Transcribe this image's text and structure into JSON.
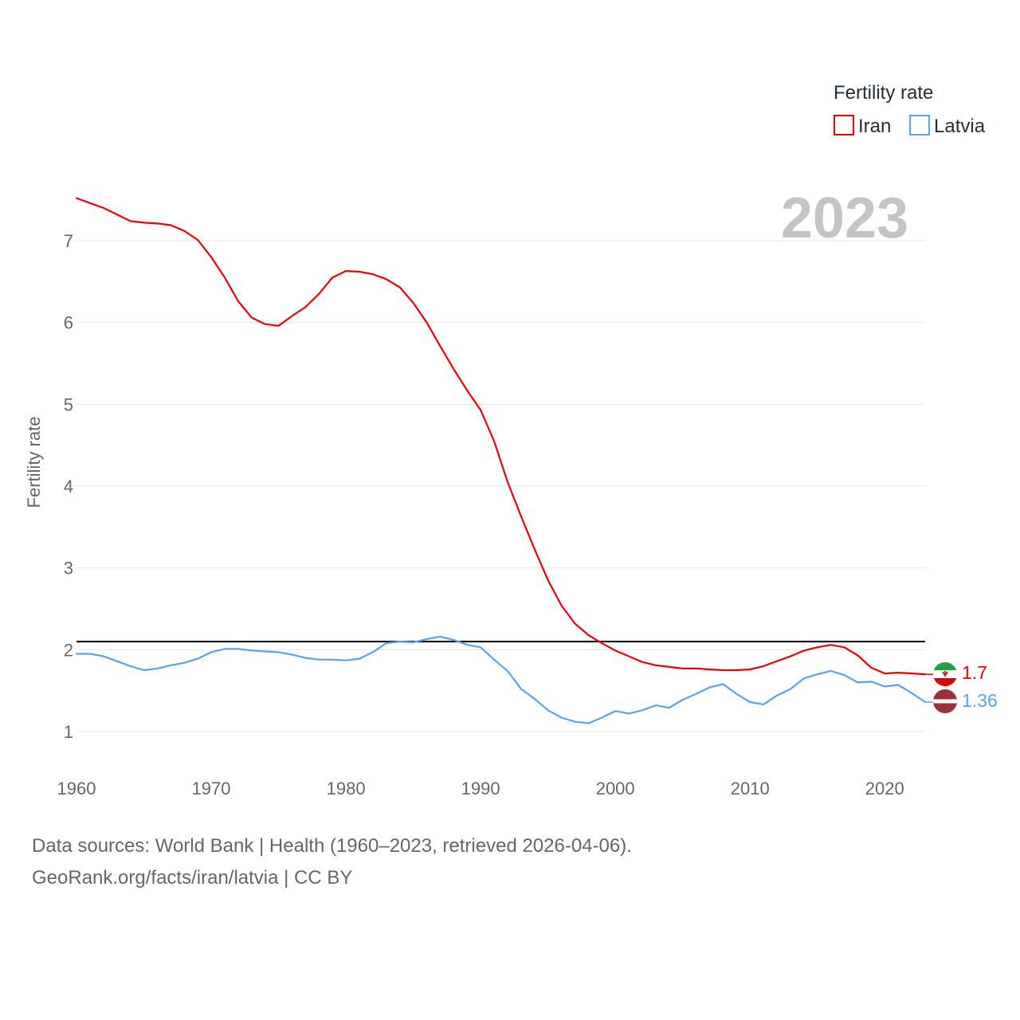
{
  "chart_data": {
    "type": "line",
    "title": "",
    "ylabel": "Fertility rate",
    "xlabel": "",
    "xlim": [
      1960,
      2023
    ],
    "ylim": [
      0.4,
      7.8
    ],
    "yticks": [
      1,
      2,
      3,
      4,
      5,
      6,
      7
    ],
    "xticks": [
      1960,
      1970,
      1980,
      1990,
      2000,
      2010,
      2020
    ],
    "year_label": "2023",
    "reference_line": {
      "value": 2.1,
      "color": "#000000"
    },
    "legend": {
      "title": "Fertility rate",
      "position": "top-right"
    },
    "x": [
      1960,
      1961,
      1962,
      1963,
      1964,
      1965,
      1966,
      1967,
      1968,
      1969,
      1970,
      1971,
      1972,
      1973,
      1974,
      1975,
      1976,
      1977,
      1978,
      1979,
      1980,
      1981,
      1982,
      1983,
      1984,
      1985,
      1986,
      1987,
      1988,
      1989,
      1990,
      1991,
      1992,
      1993,
      1994,
      1995,
      1996,
      1997,
      1998,
      1999,
      2000,
      2001,
      2002,
      2003,
      2004,
      2005,
      2006,
      2007,
      2008,
      2009,
      2010,
      2011,
      2012,
      2013,
      2014,
      2015,
      2016,
      2017,
      2018,
      2019,
      2020,
      2021,
      2022,
      2023
    ],
    "series": [
      {
        "name": "Iran",
        "color": "#e8000b",
        "end_label": "1.7",
        "values": [
          7.52,
          7.46,
          7.4,
          7.32,
          7.24,
          7.22,
          7.21,
          7.19,
          7.12,
          7.01,
          6.8,
          6.55,
          6.26,
          6.06,
          5.98,
          5.96,
          6.08,
          6.19,
          6.35,
          6.55,
          6.63,
          6.62,
          6.59,
          6.53,
          6.43,
          6.24,
          6.0,
          5.71,
          5.43,
          5.17,
          4.93,
          4.55,
          4.05,
          3.63,
          3.23,
          2.85,
          2.54,
          2.32,
          2.18,
          2.08,
          1.99,
          1.92,
          1.85,
          1.81,
          1.79,
          1.77,
          1.77,
          1.76,
          1.75,
          1.75,
          1.76,
          1.8,
          1.86,
          1.92,
          1.99,
          2.03,
          2.06,
          2.03,
          1.93,
          1.78,
          1.71,
          1.72,
          1.71,
          1.7
        ]
      },
      {
        "name": "Latvia",
        "color": "#5aa3e6",
        "end_label": "1.36",
        "values": [
          1.95,
          1.95,
          1.92,
          1.86,
          1.8,
          1.75,
          1.77,
          1.81,
          1.84,
          1.89,
          1.97,
          2.01,
          2.01,
          1.99,
          1.98,
          1.97,
          1.94,
          1.9,
          1.88,
          1.88,
          1.87,
          1.89,
          1.97,
          2.08,
          2.1,
          2.09,
          2.13,
          2.16,
          2.12,
          2.06,
          2.03,
          1.88,
          1.74,
          1.52,
          1.4,
          1.26,
          1.17,
          1.12,
          1.1,
          1.17,
          1.25,
          1.22,
          1.26,
          1.32,
          1.29,
          1.39,
          1.46,
          1.54,
          1.58,
          1.46,
          1.36,
          1.33,
          1.44,
          1.52,
          1.65,
          1.7,
          1.74,
          1.69,
          1.6,
          1.61,
          1.55,
          1.57,
          1.47,
          1.36
        ]
      }
    ]
  },
  "source": {
    "line1": "Data sources: World Bank | Health (1960–2023, retrieved 2026-04-06).",
    "line2": "GeoRank.org/facts/iran/latvia | CC BY"
  }
}
